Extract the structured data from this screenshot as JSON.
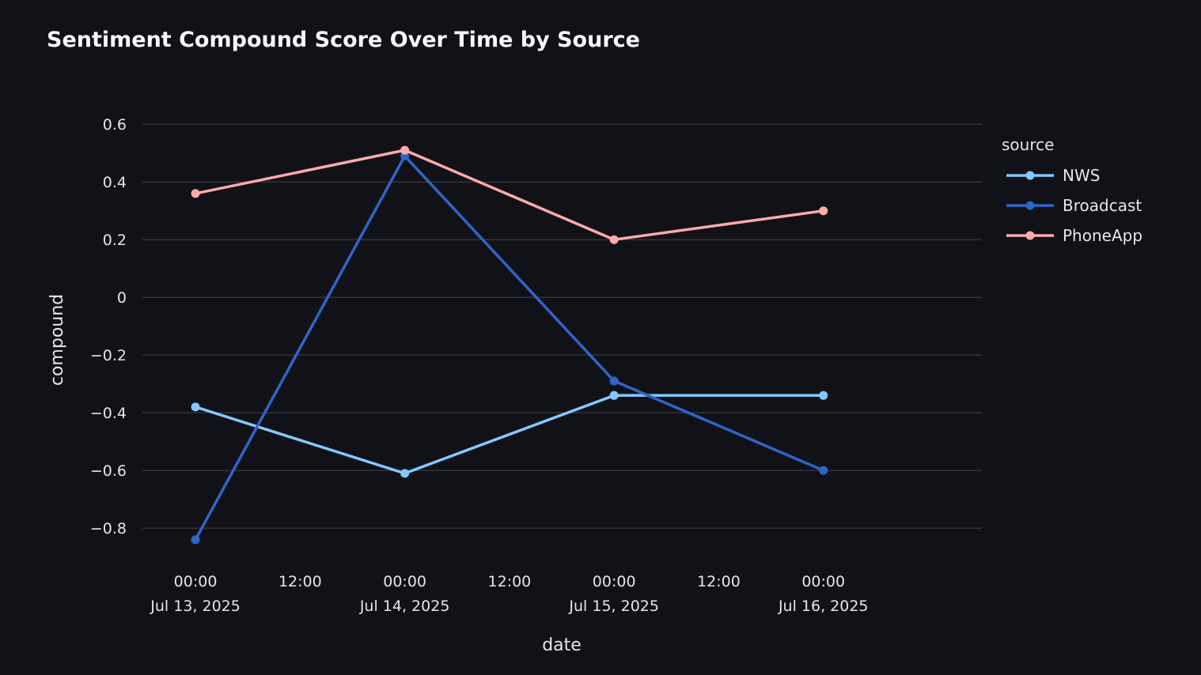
{
  "chart_data": {
    "type": "line",
    "title": "Sentiment Compound Score Over Time by Source",
    "xlabel": "date",
    "ylabel": "compound",
    "ylim": [
      -0.92,
      0.68
    ],
    "xlim": [
      "2025-07-12T17:55",
      "2025-07-16T18:10"
    ],
    "yticks": [
      {
        "value": 0.6,
        "label": "0.6"
      },
      {
        "value": 0.4,
        "label": "0.4"
      },
      {
        "value": 0.2,
        "label": "0.2"
      },
      {
        "value": 0,
        "label": "0"
      },
      {
        "value": -0.2,
        "label": "−0.2"
      },
      {
        "value": -0.4,
        "label": "−0.4"
      },
      {
        "value": -0.6,
        "label": "−0.6"
      },
      {
        "value": -0.8,
        "label": "−0.8"
      }
    ],
    "xticks": [
      {
        "value": "2025-07-13T00:00",
        "time": "00:00",
        "date": "Jul 13, 2025"
      },
      {
        "value": "2025-07-13T12:00",
        "time": "12:00",
        "date": ""
      },
      {
        "value": "2025-07-14T00:00",
        "time": "00:00",
        "date": "Jul 14, 2025"
      },
      {
        "value": "2025-07-14T12:00",
        "time": "12:00",
        "date": ""
      },
      {
        "value": "2025-07-15T00:00",
        "time": "00:00",
        "date": "Jul 15, 2025"
      },
      {
        "value": "2025-07-15T12:00",
        "time": "12:00",
        "date": ""
      },
      {
        "value": "2025-07-16T00:00",
        "time": "00:00",
        "date": "Jul 16, 2025"
      }
    ],
    "x": [
      "2025-07-13",
      "2025-07-14",
      "2025-07-15",
      "2025-07-16"
    ],
    "series": [
      {
        "name": "NWS",
        "color": "#83c9ff",
        "values": [
          -0.38,
          -0.61,
          -0.34,
          -0.34
        ]
      },
      {
        "name": "Broadcast",
        "color": "#2f65c7",
        "values": [
          -0.84,
          0.49,
          -0.29,
          -0.6
        ]
      },
      {
        "name": "PhoneApp",
        "color": "#ffabab",
        "values": [
          0.36,
          0.51,
          0.2,
          0.3
        ]
      }
    ],
    "grid": true,
    "legend": {
      "title": "source",
      "placement": "right"
    }
  }
}
